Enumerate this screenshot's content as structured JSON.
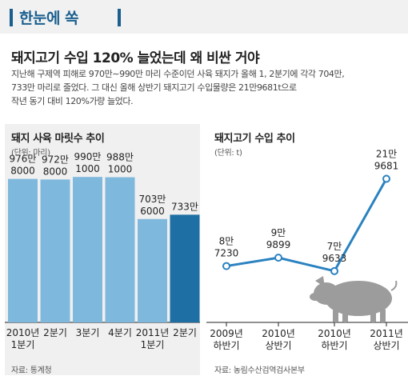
{
  "header": {
    "title": "한눈에 쏙"
  },
  "headline": "돼지고기 수입 120% 늘었는데 왜 비싼 거야",
  "lead": [
    "지난해 구제역 피해로 970만∼990만 마리 수준이던 사육 돼지가 올해 1, 2분기에 각각 704만,",
    "733만 마리로 줄었다. 그 대신 올해 상반기 돼지고기 수입물량은 21만9681t으로",
    "작년 동기 대비 120%가량 늘었다."
  ],
  "colors": {
    "accent": "#1a5f8f",
    "bar": "#7fb8dd",
    "bar_highlight": "#1e6fa3",
    "line": "#2a82c0",
    "panel_bg": "#f0f0f0"
  },
  "chart_data": [
    {
      "type": "bar",
      "title": "돼지 사육 마릿수 추이",
      "unit": "(단위: 마리)",
      "source": "자료: 통계청",
      "categories": [
        [
          "2010년",
          "1분기"
        ],
        [
          "2분기"
        ],
        [
          "3분기"
        ],
        [
          "4분기"
        ],
        [
          "2011년",
          "1분기"
        ],
        [
          "2분기"
        ]
      ],
      "values": [
        9768000,
        9728000,
        9901000,
        9881000,
        7036000,
        7330000
      ],
      "value_labels": [
        [
          "976만",
          "8000"
        ],
        [
          "972만",
          "8000"
        ],
        [
          "990만",
          "1000"
        ],
        [
          "988만",
          "1000"
        ],
        [
          "703만",
          "6000"
        ],
        [
          "733만"
        ]
      ],
      "highlight_index": 5,
      "ylim": [
        0,
        11000000
      ],
      "grid": false,
      "legend": "none"
    },
    {
      "type": "line",
      "title": "돼지고기 수입 추이",
      "unit": "(단위: t)",
      "source": "자료: 농림수산검역검사본부",
      "categories": [
        [
          "2009년",
          "하반기"
        ],
        [
          "2010년",
          "상반기"
        ],
        [
          "2010년",
          "하반기"
        ],
        [
          "2011년",
          "상반기"
        ]
      ],
      "values": [
        87230,
        99899,
        79633,
        219681
      ],
      "value_labels": [
        [
          "8만",
          "7230"
        ],
        [
          "9만",
          "9899"
        ],
        [
          "7만",
          "9633"
        ],
        [
          "21만",
          "9681"
        ]
      ],
      "ylim": [
        0,
        230000
      ],
      "grid": false,
      "legend": "none"
    }
  ]
}
